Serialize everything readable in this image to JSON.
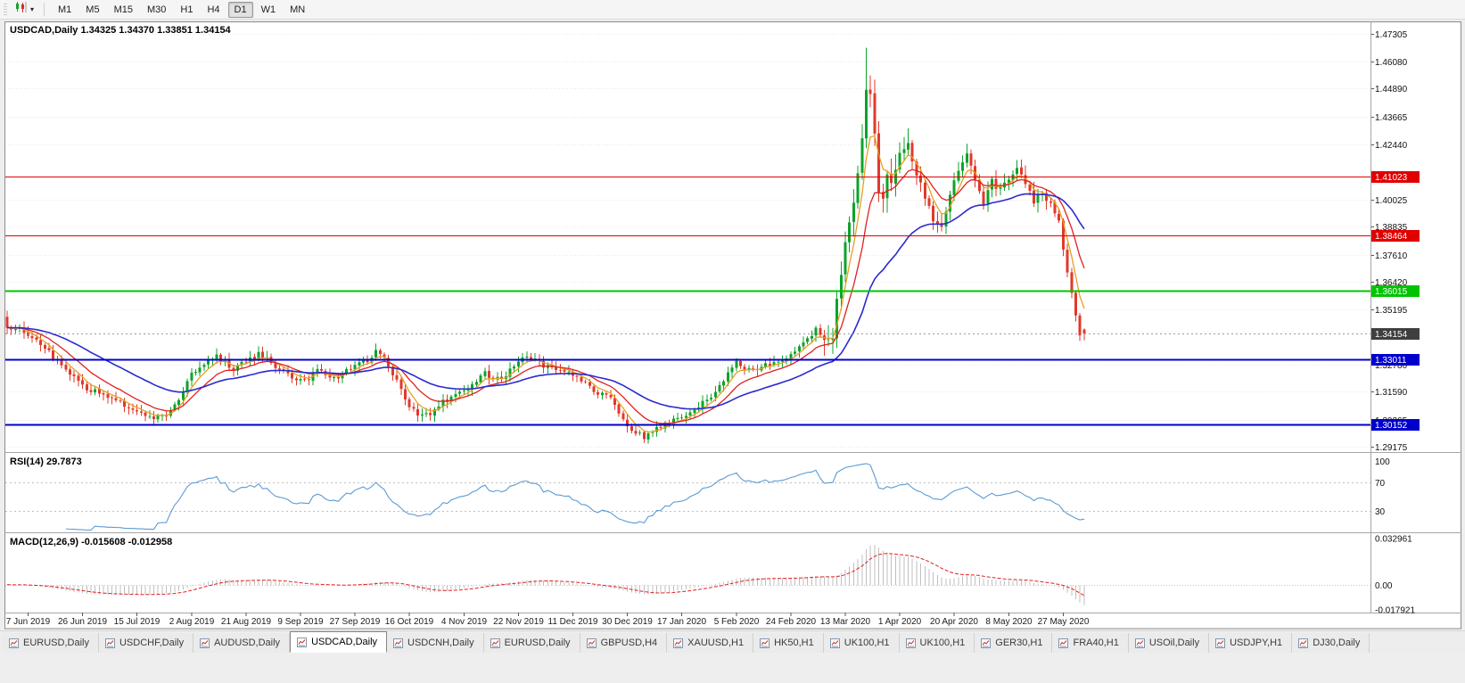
{
  "toolbar": {
    "chart_type_control": {
      "icon": "candlestick-chart-icon",
      "caret_icon": "dropdown-caret-icon"
    },
    "timeframes": [
      {
        "label": "M1",
        "active": false
      },
      {
        "label": "M5",
        "active": false
      },
      {
        "label": "M15",
        "active": false
      },
      {
        "label": "M30",
        "active": false
      },
      {
        "label": "H1",
        "active": false
      },
      {
        "label": "H4",
        "active": false
      },
      {
        "label": "D1",
        "active": true
      },
      {
        "label": "W1",
        "active": false
      },
      {
        "label": "MN",
        "active": false
      }
    ]
  },
  "chart": {
    "symbol": "USDCAD,Daily",
    "ohlc": {
      "open": "1.34325",
      "high": "1.34370",
      "low": "1.33851",
      "close": "1.34154"
    },
    "price_axis_ticks": [
      "1.47305",
      "1.46080",
      "1.44890",
      "1.43665",
      "1.42440",
      "1.40025",
      "1.38835",
      "1.37610",
      "1.36420",
      "1.35195",
      "1.32780",
      "1.31590",
      "1.30365",
      "1.29175"
    ],
    "horizontal_lines": [
      {
        "label": "1.41023",
        "value": 1.41023,
        "color": "#e00000",
        "width": 1.2
      },
      {
        "label": "1.38464",
        "value": 1.38464,
        "color": "#e00000",
        "width": 1.2
      },
      {
        "label": "1.36015",
        "value": 1.36015,
        "color": "#00c400",
        "width": 1.6
      },
      {
        "label": "1.33011",
        "value": 1.33011,
        "color": "#0000cc",
        "width": 2
      },
      {
        "label": "1.30152",
        "value": 1.30152,
        "color": "#0000cc",
        "width": 2
      }
    ],
    "current_price": {
      "label": "1.34154",
      "value": 1.34154,
      "badge_color": "#3f3f3f",
      "line_color": "#999999"
    },
    "colors": {
      "up": "#0da32b",
      "down": "#e0392b",
      "background": "#ffffff",
      "border": "#8c8c8c",
      "grid": "#e7e7e7"
    }
  },
  "indicators": {
    "rsi": {
      "name": "RSI(14)",
      "value": "29.7873",
      "period": 14,
      "levels": [
        100,
        70,
        30
      ],
      "level_labels": [
        "100",
        "70",
        "30"
      ],
      "line_color": "#5b9bd5"
    },
    "macd": {
      "name": "MACD(12,26,9)",
      "values": "-0.015608 -0.012958",
      "fast": 12,
      "slow": 26,
      "signal": 9,
      "axis_labels": [
        "0.032961",
        "0.00",
        "-0.017921"
      ],
      "axis_max": 0.032961,
      "axis_min": -0.017921,
      "histogram_color": "#bfbfbf",
      "signal_color": "#e02020"
    }
  },
  "time_axis": {
    "labels": [
      "7 Jun 2019",
      "26 Jun 2019",
      "15 Jul 2019",
      "2 Aug 2019",
      "21 Aug 2019",
      "9 Sep 2019",
      "27 Sep 2019",
      "16 Oct 2019",
      "4 Nov 2019",
      "22 Nov 2019",
      "11 Dec 2019",
      "30 Dec 2019",
      "17 Jan 2020",
      "5 Feb 2020",
      "24 Feb 2020",
      "13 Mar 2020",
      "1 Apr 2020",
      "20 Apr 2020",
      "8 May 2020",
      "27 May 2020"
    ],
    "first_candle_index": 5,
    "candles_per_label": 13
  },
  "tabs": [
    {
      "label": "EURUSD,Daily",
      "active": false
    },
    {
      "label": "USDCHF,Daily",
      "active": false
    },
    {
      "label": "AUDUSD,Daily",
      "active": false
    },
    {
      "label": "USDCAD,Daily",
      "active": true
    },
    {
      "label": "USDCNH,Daily",
      "active": false
    },
    {
      "label": "EURUSD,Daily",
      "active": false
    },
    {
      "label": "GBPUSD,H4",
      "active": false
    },
    {
      "label": "XAUUSD,H1",
      "active": false
    },
    {
      "label": "HK50,H1",
      "active": false
    },
    {
      "label": "UK100,H1",
      "active": false
    },
    {
      "label": "UK100,H1",
      "active": false
    },
    {
      "label": "GER30,H1",
      "active": false
    },
    {
      "label": "FRA40,H1",
      "active": false
    },
    {
      "label": "USOil,Daily",
      "active": false
    },
    {
      "label": "USDJPY,H1",
      "active": false
    },
    {
      "label": "DJ30,Daily",
      "active": false
    }
  ],
  "chart_data": {
    "type": "candlestick",
    "symbol": "USDCAD",
    "timeframe": "Daily",
    "visible_price_range": [
      1.2895,
      1.478
    ],
    "candle_count": 258,
    "close_waypoints": [
      [
        0,
        1.3452
      ],
      [
        3,
        1.343
      ],
      [
        5,
        1.3405
      ],
      [
        9,
        1.335
      ],
      [
        12,
        1.3292
      ],
      [
        15,
        1.324
      ],
      [
        18,
        1.3188
      ],
      [
        22,
        1.3148
      ],
      [
        25,
        1.3128
      ],
      [
        28,
        1.3098
      ],
      [
        31,
        1.3072
      ],
      [
        34,
        1.305
      ],
      [
        36,
        1.3042
      ],
      [
        38,
        1.306
      ],
      [
        40,
        1.3092
      ],
      [
        42,
        1.316
      ],
      [
        44,
        1.3238
      ],
      [
        47,
        1.3282
      ],
      [
        50,
        1.3318
      ],
      [
        52,
        1.3292
      ],
      [
        54,
        1.3262
      ],
      [
        57,
        1.3292
      ],
      [
        60,
        1.3322
      ],
      [
        62,
        1.33
      ],
      [
        64,
        1.3272
      ],
      [
        67,
        1.3228
      ],
      [
        70,
        1.3206
      ],
      [
        72,
        1.3222
      ],
      [
        74,
        1.3248
      ],
      [
        76,
        1.3232
      ],
      [
        78,
        1.3216
      ],
      [
        80,
        1.324
      ],
      [
        83,
        1.3268
      ],
      [
        86,
        1.3302
      ],
      [
        88,
        1.3332
      ],
      [
        90,
        1.33
      ],
      [
        92,
        1.3242
      ],
      [
        94,
        1.316
      ],
      [
        96,
        1.3096
      ],
      [
        98,
        1.3068
      ],
      [
        100,
        1.3056
      ],
      [
        102,
        1.3082
      ],
      [
        104,
        1.3112
      ],
      [
        106,
        1.3138
      ],
      [
        109,
        1.3166
      ],
      [
        111,
        1.3198
      ],
      [
        114,
        1.3238
      ],
      [
        116,
        1.3224
      ],
      [
        118,
        1.3212
      ],
      [
        120,
        1.3262
      ],
      [
        122,
        1.3302
      ],
      [
        124,
        1.3308
      ],
      [
        126,
        1.3296
      ],
      [
        128,
        1.3278
      ],
      [
        130,
        1.3262
      ],
      [
        132,
        1.3248
      ],
      [
        135,
        1.3232
      ],
      [
        137,
        1.3206
      ],
      [
        140,
        1.3168
      ],
      [
        142,
        1.3148
      ],
      [
        144,
        1.3128
      ],
      [
        146,
        1.3072
      ],
      [
        148,
        1.3008
      ],
      [
        150,
        1.2978
      ],
      [
        152,
        1.2962
      ],
      [
        154,
        1.2985
      ],
      [
        156,
        1.3012
      ],
      [
        158,
        1.303
      ],
      [
        161,
        1.3056
      ],
      [
        163,
        1.3075
      ],
      [
        166,
        1.3108
      ],
      [
        168,
        1.3142
      ],
      [
        170,
        1.3182
      ],
      [
        172,
        1.3238
      ],
      [
        174,
        1.3292
      ],
      [
        176,
        1.3268
      ],
      [
        178,
        1.3256
      ],
      [
        180,
        1.327
      ],
      [
        182,
        1.3282
      ],
      [
        184,
        1.3298
      ],
      [
        187,
        1.3322
      ],
      [
        189,
        1.3355
      ],
      [
        191,
        1.3392
      ],
      [
        193,
        1.3436
      ],
      [
        195,
        1.3392
      ],
      [
        196,
        1.3362
      ],
      [
        197,
        1.342
      ],
      [
        198,
        1.3558
      ],
      [
        199,
        1.3662
      ],
      [
        200,
        1.3808
      ],
      [
        201,
        1.3905
      ],
      [
        202,
        1.4018
      ],
      [
        203,
        1.4125
      ],
      [
        204,
        1.4285
      ],
      [
        205,
        1.451
      ],
      [
        206,
        1.4445
      ],
      [
        207,
        1.4265
      ],
      [
        208,
        1.4065
      ],
      [
        209,
        1.3995
      ],
      [
        210,
        1.4092
      ],
      [
        211,
        1.4052
      ],
      [
        212,
        1.4128
      ],
      [
        213,
        1.4195
      ],
      [
        214,
        1.4232
      ],
      [
        215,
        1.4262
      ],
      [
        216,
        1.4185
      ],
      [
        217,
        1.4112
      ],
      [
        218,
        1.4065
      ],
      [
        219,
        1.4022
      ],
      [
        220,
        1.3962
      ],
      [
        221,
        1.3908
      ],
      [
        222,
        1.3885
      ],
      [
        223,
        1.3872
      ],
      [
        224,
        1.3938
      ],
      [
        225,
        1.4012
      ],
      [
        226,
        1.4075
      ],
      [
        227,
        1.4132
      ],
      [
        228,
        1.4165
      ],
      [
        229,
        1.4192
      ],
      [
        230,
        1.4138
      ],
      [
        231,
        1.4082
      ],
      [
        232,
        1.4035
      ],
      [
        233,
        1.3992
      ],
      [
        234,
        1.4038
      ],
      [
        235,
        1.4082
      ],
      [
        236,
        1.4062
      ],
      [
        237,
        1.4042
      ],
      [
        238,
        1.4075
      ],
      [
        239,
        1.4108
      ],
      [
        240,
        1.4122
      ],
      [
        241,
        1.4138
      ],
      [
        242,
        1.4098
      ],
      [
        243,
        1.4062
      ],
      [
        244,
        1.4022
      ],
      [
        245,
        1.3988
      ],
      [
        246,
        1.4012
      ],
      [
        247,
        1.4038
      ],
      [
        248,
        1.4002
      ],
      [
        249,
        1.3988
      ],
      [
        250,
        1.3942
      ],
      [
        251,
        1.3905
      ],
      [
        252,
        1.3788
      ],
      [
        253,
        1.3692
      ],
      [
        254,
        1.3582
      ],
      [
        255,
        1.3492
      ],
      [
        256,
        1.3398
      ],
      [
        257,
        1.34154
      ]
    ],
    "high_spike": {
      "index": 205,
      "high": 1.4668
    },
    "last_candle": {
      "open": 1.34325,
      "high": 1.3437,
      "low": 1.33851,
      "close": 1.34154
    },
    "moving_averages": [
      {
        "name": "fast-ma",
        "period": 5,
        "color": "#e8a020"
      },
      {
        "name": "medium-ma",
        "period": 12,
        "color": "#e02020"
      },
      {
        "name": "slow-ma",
        "period": 34,
        "color": "#2a2ad0"
      }
    ]
  }
}
